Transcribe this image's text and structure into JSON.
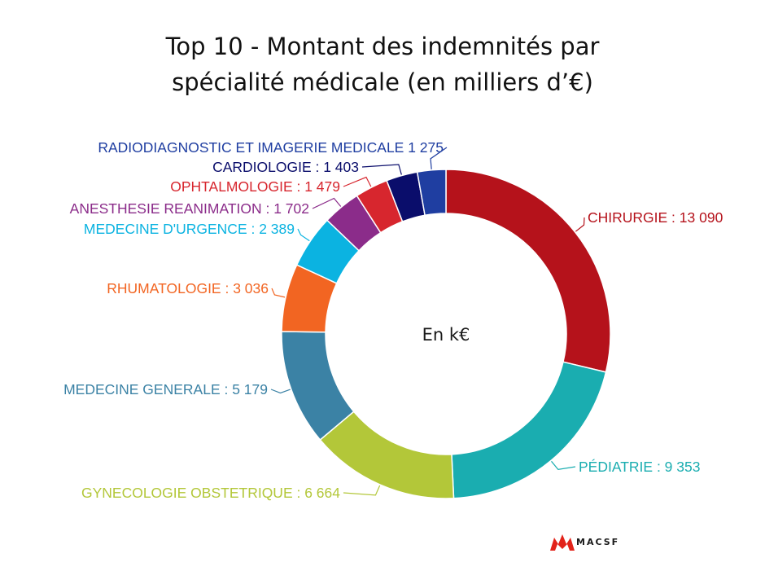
{
  "chart_data": {
    "type": "pie",
    "donut": true,
    "title_lines": [
      "Top 10 - Montant des indemnités par",
      "spécialité médicale (en milliers d’€)"
    ],
    "center_label": "En k€",
    "slices": [
      {
        "name": "CHIRURGIE",
        "value": 13090,
        "label": "CHIRURGIE : 13 090",
        "color": "#b5121b"
      },
      {
        "name": "PÉDIATRIE",
        "value": 9353,
        "label": "PÉDIATRIE : 9 353",
        "color": "#1aadb0"
      },
      {
        "name": "GYNECOLOGIE OBSTETRIQUE",
        "value": 6664,
        "label": "GYNECOLOGIE OBSTETRIQUE : 6 664",
        "color": "#b3c739"
      },
      {
        "name": "MEDECINE GENERALE",
        "value": 5179,
        "label": "MEDECINE GENERALE : 5 179",
        "color": "#3b82a5"
      },
      {
        "name": "RHUMATOLOGIE",
        "value": 3036,
        "label": "RHUMATOLOGIE : 3 036",
        "color": "#f26522"
      },
      {
        "name": "MEDECINE D'URGENCE",
        "value": 2389,
        "label": "MEDECINE D'URGENCE : 2 389",
        "color": "#0bb3e1"
      },
      {
        "name": "ANESTHESIE REANIMATION",
        "value": 1702,
        "label": "ANESTHESIE REANIMATION : 1 702",
        "color": "#8b2c8a"
      },
      {
        "name": "OPHTALMOLOGIE",
        "value": 1479,
        "label": "OPHTALMOLOGIE : 1 479",
        "color": "#d7262e"
      },
      {
        "name": "CARDIOLOGIE",
        "value": 1403,
        "label": "CARDIOLOGIE : 1 403",
        "color": "#0a0d6b"
      },
      {
        "name": "RADIODIAGNOSTIC ET IMAGERIE MEDICALE",
        "value": 1275,
        "label": "RADIODIAGNOSTIC ET IMAGERIE MEDICALE 1 275",
        "color": "#1f3ea1"
      }
    ]
  },
  "brand": {
    "name": "MACSF",
    "color": "#e2231a"
  }
}
